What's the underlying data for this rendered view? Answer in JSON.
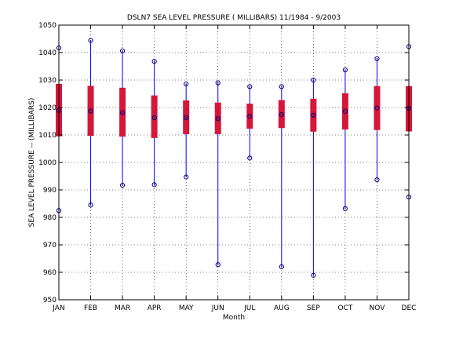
{
  "chart_data": {
    "type": "box",
    "title": "DSLN7  SEA LEVEL PRESSURE ( MILLIBARS) 11/1984 - 9/2003",
    "xlabel": "Month",
    "ylabel": "SEA LEVEL PRESSURE -- (MILLIBARS)",
    "ylim": [
      950,
      1050
    ],
    "yticks": [
      950,
      960,
      970,
      980,
      990,
      1000,
      1010,
      1020,
      1030,
      1040,
      1050
    ],
    "grid": true,
    "categories": [
      "JAN",
      "FEB",
      "MAR",
      "APR",
      "MAY",
      "JUN",
      "JUL",
      "AUG",
      "SEP",
      "OCT",
      "NOV",
      "DEC"
    ],
    "series": [
      {
        "min": [
          982.5,
          984.5,
          991.7,
          991.9,
          994.7,
          962.8,
          1001.6,
          962.0,
          958.9,
          983.2,
          993.7,
          987.4
        ],
        "q1": [
          1009.5,
          1009.7,
          1009.4,
          1008.9,
          1010.3,
          1010.3,
          1012.3,
          1012.5,
          1011.2,
          1012.0,
          1011.8,
          1011.3
        ],
        "median": [
          1018.9,
          1018.7,
          1018.1,
          1016.3,
          1016.3,
          1016.0,
          1016.8,
          1017.4,
          1017.2,
          1018.6,
          1019.8,
          1019.7
        ],
        "q3": [
          1028.6,
          1027.9,
          1027.2,
          1024.4,
          1022.6,
          1021.8,
          1021.4,
          1022.7,
          1023.2,
          1025.2,
          1027.8,
          1027.8
        ],
        "max": [
          1041.7,
          1044.4,
          1040.6,
          1036.8,
          1028.6,
          1029.0,
          1027.6,
          1027.6,
          1030.0,
          1033.7,
          1037.8,
          1042.2
        ]
      }
    ]
  },
  "colors": {
    "whisker": "#0000ff",
    "box": "#d4173a",
    "marker": "#00007f",
    "axis": "#000000"
  }
}
